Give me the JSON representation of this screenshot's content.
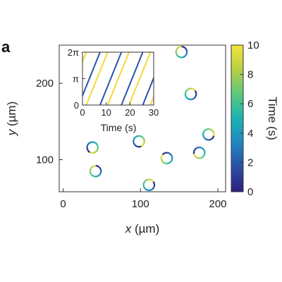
{
  "panel_label": "a",
  "chart_data": [
    {
      "type": "scatter",
      "title": "",
      "xlabel_var": "x",
      "xlabel_unit": " (µm)",
      "ylabel_var": "y",
      "ylabel_unit": " (µm)",
      "xlim": [
        -5,
        210
      ],
      "ylim": [
        58,
        250
      ],
      "xticks": [
        0,
        100,
        200
      ],
      "yticks": [
        100,
        200
      ],
      "xtick_labels": [
        "0",
        "100",
        "200"
      ],
      "ytick_labels": [
        "100",
        "200"
      ],
      "grid": false,
      "points": [
        {
          "x": 153,
          "y": 241
        },
        {
          "x": 165,
          "y": 186
        },
        {
          "x": 188,
          "y": 133
        },
        {
          "x": 98,
          "y": 124
        },
        {
          "x": 38,
          "y": 116
        },
        {
          "x": 176,
          "y": 109
        },
        {
          "x": 134,
          "y": 102
        },
        {
          "x": 42,
          "y": 85
        },
        {
          "x": 111,
          "y": 67
        }
      ],
      "marker": "ring",
      "ring_radius_um": 7,
      "color_by": "time"
    },
    {
      "type": "line",
      "role": "inset",
      "xlabel": "Time (s)",
      "ylabel": "",
      "xlim": [
        0,
        30
      ],
      "ylim": [
        0,
        6.2832
      ],
      "xticks": [
        0,
        10,
        20,
        30
      ],
      "xtick_labels": [
        "0",
        "10",
        "20",
        "30"
      ],
      "yticks": [
        0,
        3.1416,
        6.2832
      ],
      "ytick_labels": [
        "0",
        "π",
        "2π"
      ],
      "series": [
        {
          "color": "#f3d93b",
          "period_s": 9.0,
          "phase_offset_s": 1.6
        },
        {
          "color": "#2a55a8",
          "period_s": 9.0,
          "phase_offset_s": -1.6
        }
      ]
    },
    {
      "type": "colorbar",
      "label": "Time (s)",
      "range": [
        0,
        10
      ],
      "ticks": [
        0,
        2,
        4,
        6,
        8,
        10
      ],
      "tick_labels": [
        "0",
        "2",
        "4",
        "6",
        "8",
        "10"
      ],
      "colormap": [
        "#2c1f80",
        "#2b4ea5",
        "#1f86c2",
        "#1ab3b3",
        "#5cc87e",
        "#b8cf44",
        "#f4e33a"
      ]
    }
  ]
}
